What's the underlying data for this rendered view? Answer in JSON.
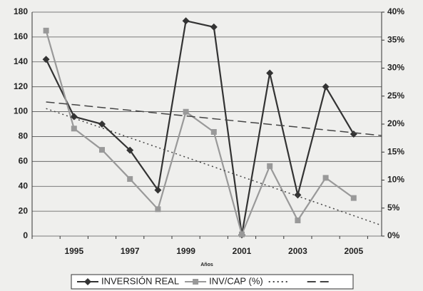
{
  "chart_data": {
    "type": "line",
    "x_label": "Años",
    "categories": [
      null,
      "1995",
      null,
      "1997",
      null,
      "1999",
      null,
      "2001",
      null,
      "2003",
      null,
      "2005",
      null
    ],
    "ylim": [
      0,
      180
    ],
    "yticks": [
      0,
      20,
      40,
      60,
      80,
      100,
      120,
      140,
      160,
      180
    ],
    "y2lim": [
      0,
      40
    ],
    "y2ticks": [
      {
        "value": 0,
        "label": "0%"
      },
      {
        "value": 5,
        "label": "5%"
      },
      {
        "value": 10,
        "label": "10%"
      },
      {
        "value": 15,
        "label": "15%"
      },
      {
        "value": 20,
        "label": "20%"
      },
      {
        "value": 25,
        "label": "25%"
      },
      {
        "value": 30,
        "label": "30%"
      },
      {
        "value": 35,
        "label": "35%"
      },
      {
        "value": 40,
        "label": "40%"
      }
    ],
    "grid": true,
    "legend": "bottom",
    "series": [
      {
        "name": "INVERSIÓN REAL",
        "color": "#333333",
        "marker": "diamond",
        "values": [
          142,
          96,
          90,
          69,
          37,
          173,
          168,
          1,
          131,
          33,
          120,
          82,
          null
        ]
      },
      {
        "name": "INV/CAP (%)",
        "color": "#999999",
        "marker": "square",
        "axis": "y2",
        "values": [
          36.7,
          19.2,
          15.4,
          10.2,
          4.8,
          22.2,
          18.6,
          0.3,
          12.5,
          2.8,
          10.4,
          6.8,
          null
        ]
      },
      {
        "color": "#444444",
        "dash": "dotted",
        "values": [
          102.5,
          94.7,
          86.9,
          79.0,
          71.2,
          63.4,
          55.6,
          47.7,
          39.9,
          32.1,
          24.3,
          16.4,
          8.6
        ]
      },
      {
        "color": "#444444",
        "dash": "dashed",
        "values": [
          107.8,
          105.6,
          103.3,
          101.1,
          98.8,
          96.6,
          94.3,
          92.1,
          89.8,
          87.6,
          85.3,
          83.1,
          80.8
        ]
      }
    ]
  }
}
